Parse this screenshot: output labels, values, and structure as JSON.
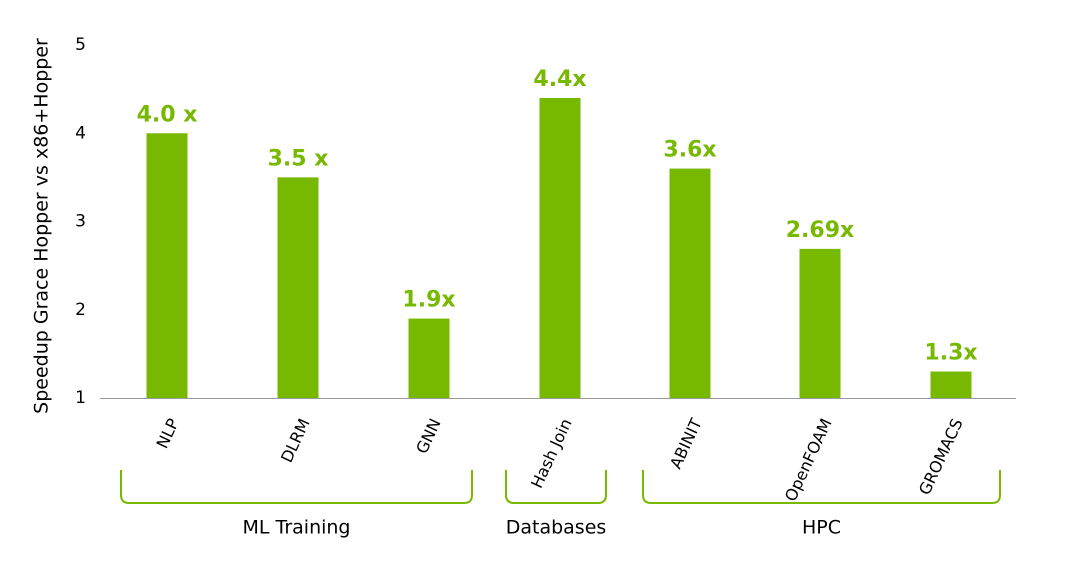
{
  "chart_data": {
    "type": "bar",
    "title": "",
    "ylabel": "Speedup Grace Hopper vs x86+Hopper",
    "xlabel": "",
    "ylim": [
      1,
      5
    ],
    "yticks": [
      "1",
      "2",
      "3",
      "4",
      "5"
    ],
    "grid": false,
    "categories": [
      "NLP",
      "DLRM",
      "GNN",
      "Hash Join",
      "ABINIT",
      "OpenFOAM",
      "GROMACS"
    ],
    "values": [
      4.0,
      3.5,
      1.9,
      4.4,
      3.6,
      2.69,
      1.3
    ],
    "data_labels": [
      "4.0 x",
      "3.5 x",
      "1.9x",
      "4.4x",
      "3.6x",
      "2.69x",
      "1.3x"
    ],
    "groups": [
      {
        "label": "ML Training",
        "categories": [
          "NLP",
          "DLRM",
          "GNN"
        ]
      },
      {
        "label": "Databases",
        "categories": [
          "Hash Join"
        ]
      },
      {
        "label": "HPC",
        "categories": [
          "ABINIT",
          "OpenFOAM",
          "GROMACS"
        ]
      }
    ],
    "colors": {
      "bar": "#76b900",
      "bracket": "#76b900",
      "axis": "#999999"
    }
  }
}
